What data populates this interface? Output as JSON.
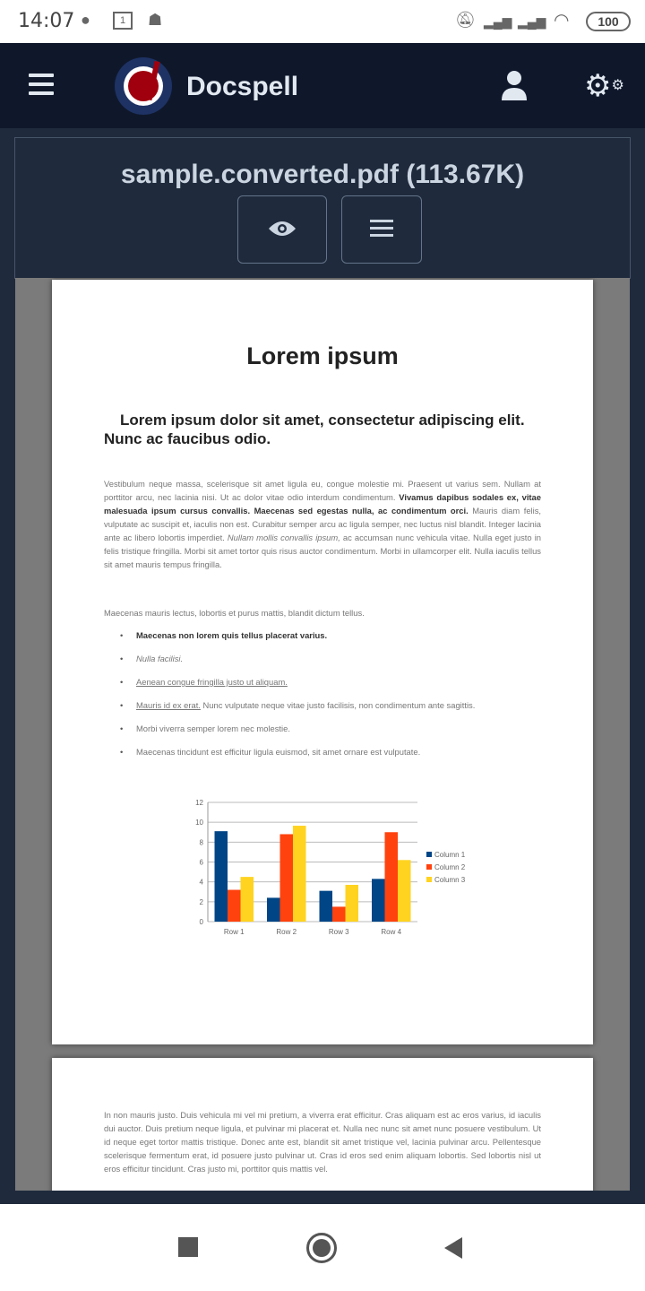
{
  "status_bar": {
    "time": "14:07",
    "battery": "100",
    "icons": [
      "messenger-icon",
      "calendar-icon",
      "notification-icon",
      "mute-icon",
      "signal-icon",
      "roaming-signal-icon",
      "wifi-icon",
      "battery-icon"
    ],
    "calendar_day": "1"
  },
  "header": {
    "brand": "Docspell",
    "icons": [
      "menu-icon",
      "docspell-logo",
      "user-icon",
      "settings-icon"
    ]
  },
  "file": {
    "title": "sample.converted.pdf (113.67K)",
    "buttons": [
      {
        "icon": "eye-icon"
      },
      {
        "icon": "menu-icon"
      }
    ]
  },
  "document": {
    "title": "Lorem ipsum",
    "subtitle": "Lorem ipsum dolor sit amet, consectetur adipiscing elit. Nunc ac faucibus odio.",
    "para1_a": "Vestibulum neque massa, scelerisque sit amet ligula eu, congue molestie mi. Praesent ut varius sem. Nullam at porttitor arcu, nec lacinia nisi. Ut ac dolor vitae odio interdum condimentum. ",
    "para1_bold": "Vivamus dapibus sodales ex, vitae malesuada ipsum cursus convallis. Maecenas sed egestas nulla, ac condimentum orci.",
    "para1_b": " Mauris diam felis, vulputate ac suscipit et, iaculis non est. Curabitur semper arcu ac ligula semper, nec luctus nisl blandit. Integer lacinia ante ac libero lobortis imperdiet. ",
    "para1_italic": "Nullam mollis convallis ipsum,",
    "para1_c": " ac accumsan nunc vehicula vitae. Nulla eget justo in felis tristique fringilla. Morbi sit amet tortor quis risus auctor condimentum. Morbi in ullamcorper elit. Nulla iaculis tellus sit amet mauris tempus fringilla.",
    "para2": "Maecenas mauris lectus, lobortis et purus mattis, blandit dictum tellus.",
    "bullets": {
      "b1": "Maecenas non lorem quis tellus placerat varius.",
      "b2": "Nulla facilisi.",
      "b3": "Aenean congue fringilla justo ut aliquam.",
      "b4_link": "Mauris id ex erat.",
      "b4_rest": " Nunc vulputate neque vitae justo facilisis, non condimentum ante sagittis.",
      "b5": "Morbi viverra semper lorem nec molestie.",
      "b6": "Maecenas tincidunt est efficitur ligula euismod, sit amet ornare est vulputate."
    },
    "page2_text": "In non mauris justo. Duis vehicula mi vel mi pretium, a viverra erat efficitur. Cras aliquam est ac eros varius, id iaculis dui auctor. Duis pretium neque ligula, et pulvinar mi placerat et. Nulla nec nunc sit amet nunc posuere vestibulum. Ut id neque eget tortor mattis tristique. Donec ante est, blandit sit amet tristique vel, lacinia pulvinar arcu. Pellentesque scelerisque fermentum erat, id posuere justo pulvinar ut. Cras id eros sed enim aliquam lobortis. Sed lobortis nisl ut eros efficitur tincidunt. Cras justo mi, porttitor quis mattis vel."
  },
  "chart_data": {
    "type": "bar",
    "categories": [
      "Row 1",
      "Row 2",
      "Row 3",
      "Row 4"
    ],
    "series": [
      {
        "name": "Column 1",
        "color": "#004586",
        "values": [
          9.1,
          2.4,
          3.1,
          4.3
        ]
      },
      {
        "name": "Column 2",
        "color": "#ff420e",
        "values": [
          3.2,
          8.8,
          1.5,
          9.0
        ]
      },
      {
        "name": "Column 3",
        "color": "#ffd320",
        "values": [
          4.5,
          9.65,
          3.7,
          6.2
        ]
      }
    ],
    "ylim": [
      0,
      12
    ],
    "yticks": [
      "0",
      "2",
      "4",
      "6",
      "8",
      "10",
      "12"
    ],
    "grid": true,
    "legend": "right"
  },
  "navbar": {
    "icons": [
      "recent-apps-icon",
      "home-icon",
      "back-icon"
    ]
  }
}
